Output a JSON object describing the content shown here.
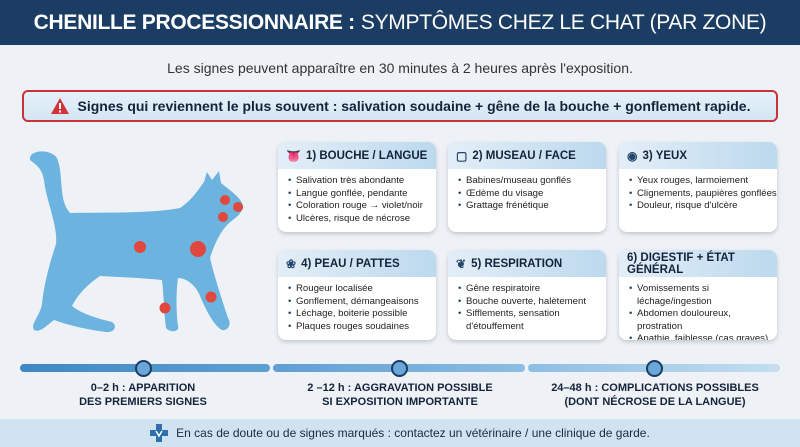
{
  "header": {
    "title_bold": "CHENILLE PROCESSIONNAIRE :",
    "title_light": "SYMPTÔMES CHEZ LE CHAT (PAR ZONE)"
  },
  "subtitle": "Les signes peuvent apparaître en 30 minutes à 2 heures après l'exposition.",
  "alert": {
    "icon": "warning-triangle-icon",
    "text": "Signes qui reviennent le plus souvent : salivation soudaine + gêne de la bouche + gonflement rapide."
  },
  "colors": {
    "header": "#1c3d63",
    "alert_border": "#c8343a",
    "cat": "#6cb3e0",
    "marker": "#e0473d"
  },
  "cards": [
    {
      "icon": "tongue-icon",
      "title": "1) BOUCHE / LANGUE",
      "items": [
        "Salivation très abondante",
        "Langue gonflée, pendante",
        "Coloration rouge → violet/noir",
        "Ulcères, risque de nécrose"
      ]
    },
    {
      "icon": "cat-face-icon",
      "title": "2) MUSEAU / FACE",
      "items": [
        "Babines/museau gonflés",
        "Œdème du visage",
        "Grattage frénétique"
      ]
    },
    {
      "icon": "eye-icon",
      "title": "3) YEUX",
      "items": [
        "Yeux rouges, larmoiement",
        "Clignements, paupières gonflées",
        "Douleur, risque d'ulcère"
      ]
    },
    {
      "icon": "paw-icon",
      "title": "4) PEAU / PATTES",
      "items": [
        "Rougeur localisée",
        "Gonflement, démangeaisons",
        "Léchage, boiterie possible",
        "Plaques rouges soudaines"
      ]
    },
    {
      "icon": "lungs-icon",
      "title": "5) RESPIRATION",
      "items": [
        "Gêne respiratoire",
        "Bouche ouverte, halètement",
        "Sifflements, sensation d'étouffement"
      ]
    },
    {
      "icon": "",
      "title": "6) DIGESTIF + ÉTAT GÉNÉRAL",
      "items": [
        "Vomissements si léchage/ingestion",
        "Abdomen douloureux, prostration",
        "Apathie, faiblesse (cas graves)"
      ]
    }
  ],
  "timeline": [
    {
      "line1": "0–2 h : APPARITION",
      "line2": "DES PREMIERS SIGNES"
    },
    {
      "line1": "2 –12 h : AGGRAVATION POSSIBLE",
      "line2": "SI EXPOSITION IMPORTANTE"
    },
    {
      "line1": "24–48 h : COMPLICATIONS POSSIBLES",
      "line2": "(DONT NÉCROSE DE LA LANGUE)"
    }
  ],
  "footer": {
    "icon": "vet-cross-icon",
    "text": "En cas de doute ou de signes marqués : contactez un vétérinaire / une clinique de garde."
  }
}
